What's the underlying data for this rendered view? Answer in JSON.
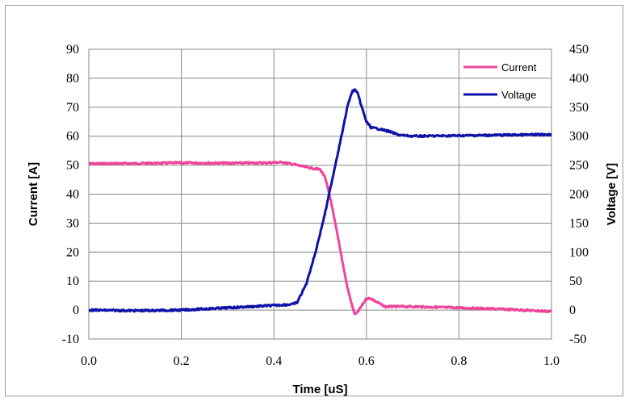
{
  "chart_data": {
    "type": "line",
    "xlabel": "Time  [uS]",
    "ylabel": "Current  [A]",
    "y2label": "Voltage  [V]",
    "xlim": [
      0.0,
      1.0
    ],
    "ylim": [
      -10,
      90
    ],
    "y2lim": [
      -50,
      450
    ],
    "x_ticks": [
      "0.0",
      "0.2",
      "0.4",
      "0.6",
      "0.8",
      "1.0"
    ],
    "y_ticks": [
      "-10",
      "0",
      "10",
      "20",
      "30",
      "40",
      "50",
      "60",
      "70",
      "80",
      "90"
    ],
    "y2_ticks": [
      "-50",
      "0",
      "50",
      "100",
      "150",
      "200",
      "250",
      "300",
      "350",
      "400",
      "450"
    ],
    "grid": true,
    "legend": "top-right",
    "series": [
      {
        "name": "Current",
        "axis": "left",
        "color": "#f0449a",
        "x": [
          0.0,
          0.1,
          0.2,
          0.3,
          0.38,
          0.42,
          0.45,
          0.47,
          0.5,
          0.51,
          0.52,
          0.53,
          0.54,
          0.55,
          0.56,
          0.57,
          0.575,
          0.58,
          0.59,
          0.6,
          0.61,
          0.62,
          0.64,
          0.7,
          0.8,
          0.9,
          1.0
        ],
        "values": [
          50.5,
          50.6,
          50.8,
          50.7,
          50.8,
          51.0,
          50.0,
          49.3,
          48.5,
          46.0,
          40.0,
          32.0,
          24.0,
          15.0,
          7.0,
          1.0,
          -1.5,
          -1.0,
          1.5,
          4.0,
          4.0,
          3.0,
          1.2,
          1.2,
          0.8,
          0.3,
          -0.5
        ]
      },
      {
        "name": "Voltage",
        "axis": "right",
        "color": "#0f11a8",
        "x": [
          0.0,
          0.1,
          0.2,
          0.3,
          0.4,
          0.44,
          0.45,
          0.47,
          0.49,
          0.51,
          0.53,
          0.55,
          0.56,
          0.57,
          0.575,
          0.58,
          0.59,
          0.6,
          0.61,
          0.63,
          0.65,
          0.67,
          0.7,
          0.8,
          0.9,
          1.0
        ],
        "values": [
          0,
          -1,
          0,
          4,
          8,
          10,
          13,
          45,
          100,
          165,
          240,
          315,
          355,
          378,
          380,
          376,
          350,
          325,
          315,
          312,
          308,
          302,
          300,
          301,
          302,
          303
        ]
      }
    ]
  }
}
